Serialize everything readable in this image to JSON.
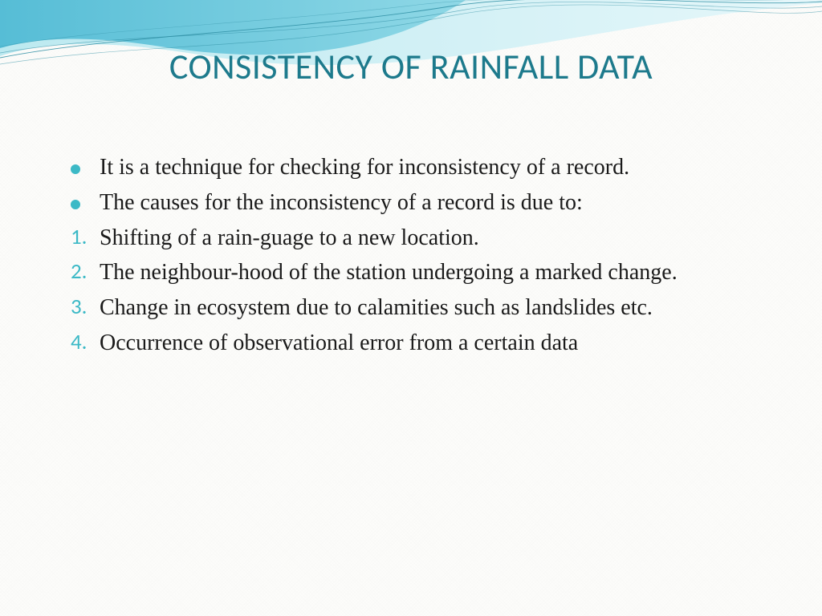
{
  "title": {
    "text": "CONSISTENCY OF RAINFALL DATA",
    "color": "#1d7a8c",
    "fontsize": 44
  },
  "body": {
    "fontsize": 28,
    "line_height": 1.35,
    "text_color": "#1a1a1a"
  },
  "bullets": {
    "marker_color": "#3cb9c6",
    "items": [
      "It is a technique for checking for inconsistency of a record.",
      "The causes for the inconsistency of a record is due to:"
    ],
    "justify_flags": [
      true,
      false
    ]
  },
  "numbered": {
    "marker_color": "#3cb9c6",
    "marker_fontsize": 27,
    "items": [
      "Shifting of a rain-guage to a new location.",
      "The neighbour-hood of the station undergoing a marked change.",
      "Change in ecosystem due to calamities such as landslides etc.",
      "Occurrence of observational error from a certain data"
    ],
    "justify_flags": [
      false,
      true,
      true,
      false
    ]
  },
  "wave": {
    "fill_dark": "#3da9c4",
    "fill_light": "#a8e0ea",
    "line_color": "#2e8ea3",
    "bg_white": "#ffffff"
  }
}
